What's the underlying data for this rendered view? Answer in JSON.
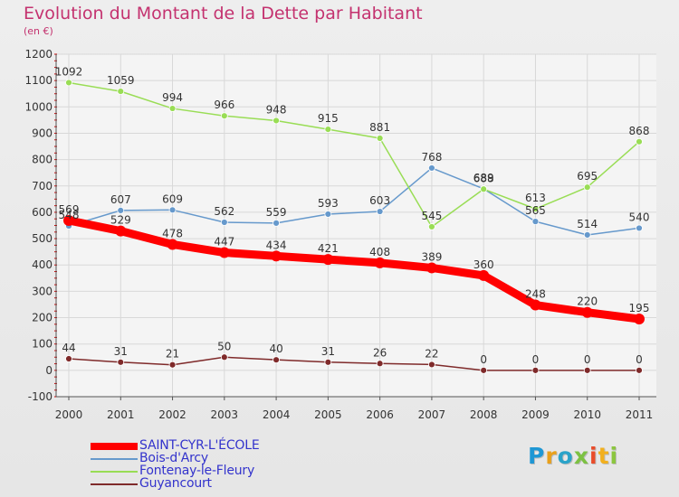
{
  "title": "Evolution du Montant de la Dette par Habitant",
  "subtitle": "(en €)",
  "brand": {
    "letters": [
      {
        "ch": "P",
        "color": "#1f97d4"
      },
      {
        "ch": "r",
        "color": "#e9a01b"
      },
      {
        "ch": "o",
        "color": "#2aa3c9"
      },
      {
        "ch": "x",
        "color": "#7cc142"
      },
      {
        "ch": "i",
        "color": "#e94c2a"
      },
      {
        "ch": "t",
        "color": "#f2b01e"
      },
      {
        "ch": "i",
        "color": "#8cc63f"
      }
    ]
  },
  "chart_data": {
    "type": "line",
    "x": [
      "2000",
      "2001",
      "2002",
      "2003",
      "2004",
      "2005",
      "2006",
      "2007",
      "2008",
      "2009",
      "2010",
      "2011"
    ],
    "ylim": [
      -100,
      1200
    ],
    "yticks": [
      -100,
      0,
      100,
      200,
      300,
      400,
      500,
      600,
      700,
      800,
      900,
      1000,
      1100,
      1200
    ],
    "grid": true,
    "legend_position": "bottom-left",
    "series": [
      {
        "name": "SAINT-CYR-L'ÉCOLE",
        "color": "#ff0000",
        "label_color": "#3333cc",
        "values": [
          569,
          529,
          478,
          447,
          434,
          421,
          408,
          389,
          360,
          248,
          220,
          195
        ]
      },
      {
        "name": "Bois-d'Arcy",
        "color": "#6699cc",
        "label_color": "#3333cc",
        "values": [
          548,
          607,
          609,
          562,
          559,
          593,
          603,
          768,
          689,
          565,
          514,
          540
        ]
      },
      {
        "name": "Fontenay-le-Fleury",
        "color": "#99dd55",
        "label_color": "#3333cc",
        "values": [
          1092,
          1059,
          994,
          966,
          948,
          915,
          881,
          545,
          688,
          613,
          695,
          868
        ]
      },
      {
        "name": "Guyancourt",
        "color": "#7f2a2a",
        "label_color": "#3333cc",
        "values": [
          44,
          31,
          21,
          50,
          40,
          31,
          26,
          22,
          0,
          0,
          0,
          0
        ]
      }
    ]
  }
}
